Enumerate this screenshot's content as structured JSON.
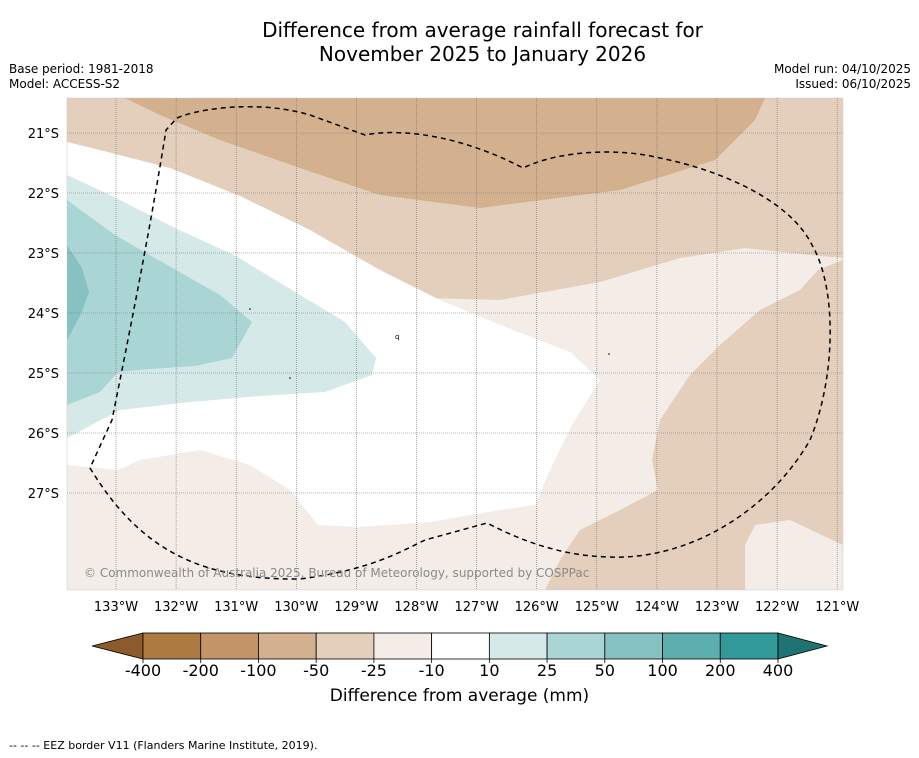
{
  "header": {
    "title_line1": "Difference from average rainfall forecast for",
    "title_line2": "November 2025 to January 2026",
    "base_period": "Base period: 1981-2018",
    "model": "Model: ACCESS-S2",
    "model_run": "Model run: 04/10/2025",
    "issued": "Issued: 06/10/2025"
  },
  "map": {
    "lat_labels": [
      "21°S",
      "22°S",
      "23°S",
      "24°S",
      "25°S",
      "26°S",
      "27°S"
    ],
    "lon_labels": [
      "133°W",
      "132°W",
      "131°W",
      "130°W",
      "129°W",
      "128°W",
      "127°W",
      "126°W",
      "125°W",
      "124°W",
      "123°W",
      "122°W",
      "121°W"
    ],
    "copyright": "© Commonwealth of Australia 2025, Bureau of Meteorology, supported by COSPPac"
  },
  "colorbar": {
    "tick_labels": [
      "-400",
      "-200",
      "-100",
      "-50",
      "-25",
      "-10",
      "10",
      "25",
      "50",
      "100",
      "200",
      "400"
    ],
    "colors": [
      "#8c5a2b",
      "#ad7a42",
      "#c29468",
      "#d3b08e",
      "#e3cfbc",
      "#f4ece6",
      "#ffffff",
      "#d4e9e8",
      "#a9d5d4",
      "#85c2c1",
      "#5dafad",
      "#31999a",
      "#1f7473"
    ],
    "title": "Difference from average (mm)"
  },
  "footnote": "-- -- -- EEZ border V11 (Flanders Marine Institute, 2019)."
}
